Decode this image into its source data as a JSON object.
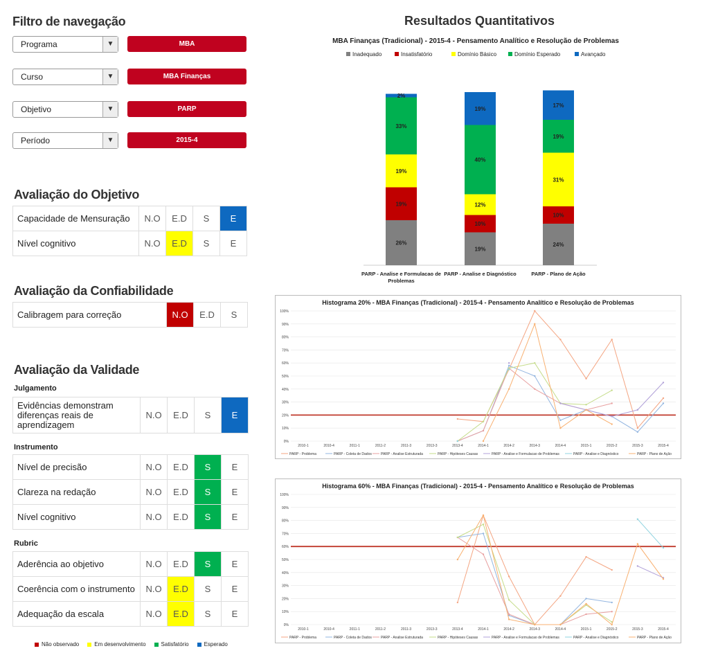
{
  "filter": {
    "title": "Filtro de navegação",
    "rows": [
      {
        "label": "Programa",
        "value": "MBA"
      },
      {
        "label": "Curso",
        "value": "MBA Finanças"
      },
      {
        "label": "Objetivo",
        "value": "PARP"
      },
      {
        "label": "Período",
        "value": "2015-4"
      }
    ]
  },
  "obj": {
    "title": "Avaliação do Objetivo",
    "rows": [
      {
        "label": "Capacidade de Mensuração",
        "cells": [
          "N.O",
          "E.D",
          "S",
          "E"
        ],
        "selected": "E",
        "color": "blue"
      },
      {
        "label": "Nível cognitivo",
        "cells": [
          "N.O",
          "E.D",
          "S",
          "E"
        ],
        "selected": "E.D",
        "color": "yellow"
      }
    ]
  },
  "conf": {
    "title": "Avaliação da Confiabilidade",
    "rows": [
      {
        "label": "Calibragem para correção",
        "cells": [
          "N.O",
          "E.D",
          "S"
        ],
        "selected": "N.O",
        "color": "red"
      }
    ]
  },
  "valid": {
    "title": "Avaliação da Validade",
    "groups": [
      {
        "name": "Julgamento",
        "rows": [
          {
            "label": "Evidências demonstram diferenças reais de aprendizagem",
            "selected": "E",
            "color": "blue"
          }
        ]
      },
      {
        "name": "Instrumento",
        "rows": [
          {
            "label": "Nível de precisão",
            "selected": "S",
            "color": "green"
          },
          {
            "label": "Clareza na redação",
            "selected": "S",
            "color": "green"
          },
          {
            "label": "Nível cognitivo",
            "selected": "S",
            "color": "green"
          }
        ]
      },
      {
        "name": "Rubric",
        "rows": [
          {
            "label": "Aderência ao objetivo",
            "selected": "S",
            "color": "green"
          },
          {
            "label": "Coerência com o instrumento",
            "selected": "E.D",
            "color": "yellow"
          },
          {
            "label": "Adequação da escala",
            "selected": "E.D",
            "color": "yellow"
          }
        ]
      }
    ],
    "cells": [
      "N.O",
      "E.D",
      "S",
      "E"
    ]
  },
  "bottom_legend": [
    {
      "label": "Não observado",
      "color": "#c00000"
    },
    {
      "label": "Em desenvolvimento",
      "color": "#ffff00"
    },
    {
      "label": "Satisfatório",
      "color": "#00b050"
    },
    {
      "label": "Esperado",
      "color": "#0e69c0"
    }
  ],
  "results_title": "Resultados Quantitativos",
  "chart_data": [
    {
      "type": "bar",
      "stacked": true,
      "title": "MBA Finanças (Tradicional) - 2015-4 - Pensamento Analítico e Resolução de Problemas",
      "categories": [
        "PARP - Analise e Formulacao de Problemas",
        "PARP - Analise e Diagnóstico",
        "PARP - Plano de Ação"
      ],
      "series": [
        {
          "name": "Inadequado",
          "color": "#808080",
          "values": [
            26,
            19,
            24
          ]
        },
        {
          "name": "Insatisfatório",
          "color": "#c00000",
          "values": [
            19,
            10,
            10
          ]
        },
        {
          "name": "Domínio Básico",
          "color": "#ffff00",
          "values": [
            19,
            12,
            31
          ]
        },
        {
          "name": "Domínio Esperado",
          "color": "#00b050",
          "values": [
            33,
            40,
            19
          ]
        },
        {
          "name": "Avançado",
          "color": "#0e69c0",
          "values": [
            2,
            19,
            17
          ]
        }
      ],
      "legend": "top"
    },
    {
      "type": "line",
      "title": "Histograma 20% - MBA Finanças (Tradicional) - 2015-4 - Pensamento Analítico e Resolução de Problemas",
      "x": [
        "2010-1",
        "2010-4",
        "2011-1",
        "2011-2",
        "2011-3",
        "2013-3",
        "2013-4",
        "2014-1",
        "2014-2",
        "2014-3",
        "2014-4",
        "2015-1",
        "2015-2",
        "2015-3",
        "2015-4"
      ],
      "ylim": [
        0,
        100
      ],
      "yticks": [
        "0%",
        "10%",
        "20%",
        "30%",
        "40%",
        "50%",
        "60%",
        "70%",
        "80%",
        "90%",
        "100%"
      ],
      "threshold": 20,
      "series": [
        {
          "name": "PARP - Problema",
          "color": "#f4a582",
          "values": [
            null,
            null,
            null,
            null,
            null,
            null,
            17,
            15,
            55,
            100,
            78,
            48,
            78,
            10,
            33
          ]
        },
        {
          "name": "PARP - Coleta de Dados",
          "color": "#92b5e0",
          "values": [
            null,
            null,
            null,
            null,
            null,
            null,
            0,
            8,
            58,
            50,
            16,
            24,
            19,
            7,
            29
          ]
        },
        {
          "name": "PARP - Analise Estruturada",
          "color": "#e8a0a0",
          "values": [
            null,
            null,
            null,
            null,
            null,
            null,
            0,
            8,
            56,
            40,
            29,
            24,
            29,
            null,
            null
          ]
        },
        {
          "name": "PARP - Hipóteses Causas",
          "color": "#c5dc8a",
          "values": [
            null,
            null,
            null,
            null,
            null,
            null,
            0,
            15,
            56,
            60,
            29,
            28,
            39,
            null,
            null
          ]
        },
        {
          "name": "PARP - Analise e Formulacao de Problemas",
          "color": "#b0a0d8",
          "values": [
            null,
            null,
            null,
            null,
            null,
            null,
            null,
            null,
            60,
            null,
            29,
            24,
            19,
            24,
            45
          ]
        },
        {
          "name": "PARP - Analise e Diagnóstico",
          "color": "#8fd3e0",
          "values": [
            null,
            null,
            null,
            null,
            null,
            null,
            0,
            null,
            55,
            null,
            null,
            null,
            null,
            null,
            null
          ]
        },
        {
          "name": "PARP - Plano de Ação",
          "color": "#f8b070",
          "values": [
            null,
            null,
            null,
            null,
            null,
            null,
            null,
            0,
            40,
            90,
            10,
            24,
            13,
            null,
            null
          ]
        }
      ],
      "legend": "bottom"
    },
    {
      "type": "line",
      "title": "Histograma 60% - MBA Finanças (Tradicional) - 2015-4 - Pensamento Analítico e Resolução de Problemas",
      "x": [
        "2010-1",
        "2010-4",
        "2011-1",
        "2011-2",
        "2011-3",
        "2013-3",
        "2013-4",
        "2014-1",
        "2014-2",
        "2014-3",
        "2014-4",
        "2015-1",
        "2015-2",
        "2015-3",
        "2015-4"
      ],
      "ylim": [
        0,
        100
      ],
      "yticks": [
        "0%",
        "10%",
        "20%",
        "30%",
        "40%",
        "50%",
        "60%",
        "70%",
        "80%",
        "90%",
        "100%"
      ],
      "threshold": 60,
      "series": [
        {
          "name": "PARP - Problema",
          "color": "#f4a582",
          "values": [
            null,
            null,
            null,
            null,
            null,
            null,
            17,
            84,
            37,
            0,
            22,
            52,
            42,
            null,
            null
          ]
        },
        {
          "name": "PARP - Coleta de Dados",
          "color": "#92b5e0",
          "values": [
            null,
            null,
            null,
            null,
            null,
            null,
            67,
            70,
            7,
            0,
            0,
            20,
            17,
            null,
            null
          ]
        },
        {
          "name": "PARP - Analise Estruturada",
          "color": "#e8a0a0",
          "values": [
            null,
            null,
            null,
            null,
            null,
            null,
            67,
            54,
            8,
            0,
            0,
            8,
            10,
            null,
            null
          ]
        },
        {
          "name": "PARP - Hipóteses Causas",
          "color": "#c5dc8a",
          "values": [
            null,
            null,
            null,
            null,
            null,
            null,
            67,
            77,
            19,
            0,
            0,
            15,
            2,
            null,
            null
          ]
        },
        {
          "name": "PARP - Analise e Formulacao de Problemas",
          "color": "#b0a0d8",
          "values": [
            null,
            null,
            null,
            null,
            null,
            null,
            null,
            null,
            null,
            null,
            null,
            null,
            null,
            45,
            36
          ]
        },
        {
          "name": "PARP - Analise e Diagnóstico",
          "color": "#8fd3e0",
          "values": [
            null,
            null,
            null,
            null,
            null,
            null,
            null,
            null,
            null,
            null,
            null,
            null,
            null,
            81,
            59
          ]
        },
        {
          "name": "PARP - Plano de Ação",
          "color": "#f8b070",
          "values": [
            null,
            null,
            null,
            null,
            null,
            null,
            50,
            84,
            4,
            0,
            0,
            16,
            0,
            62,
            35
          ]
        }
      ],
      "legend": "bottom"
    }
  ]
}
